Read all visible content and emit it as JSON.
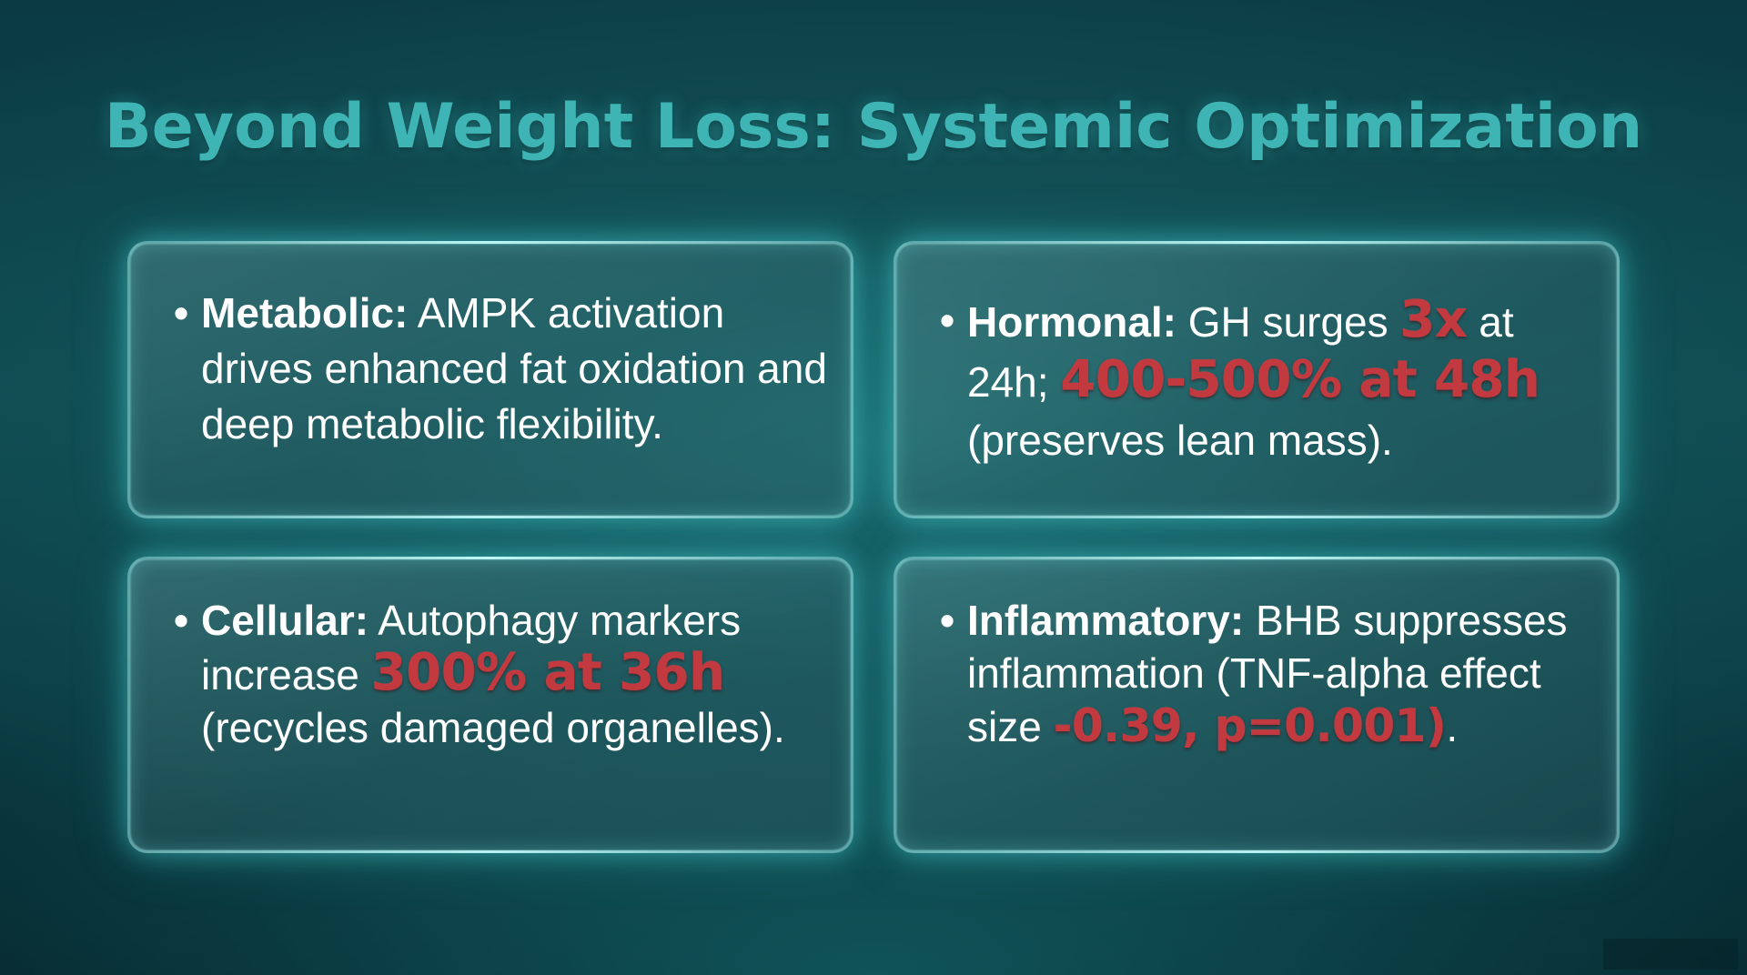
{
  "slide": {
    "title": "Beyond Weight Loss: Systemic Optimization"
  },
  "cards": {
    "metabolic": {
      "bullet": "•",
      "label": "Metabolic:",
      "text": " AMPK activation drives enhanced fat oxidation and deep metabolic flexibility."
    },
    "hormonal": {
      "bullet": "•",
      "label": "Hormonal:",
      "text_1": " GH surges ",
      "highlight_1": "3x",
      "text_2": " at 24h; ",
      "highlight_2": "400-500% at 48h",
      "text_3": " (preserves lean mass)."
    },
    "cellular": {
      "bullet": "•",
      "label": "Cellular:",
      "text_1": " Autophagy markers increase ",
      "highlight_1": "300% at 36h",
      "text_2": " (recycles damaged organelles)."
    },
    "inflammatory": {
      "bullet": "•",
      "label": "Inflammatory:",
      "text_1": " BHB suppresses inflammation (TNF-alpha effect size ",
      "highlight_1": "-0.39, p=0.001)",
      "text_2": "."
    }
  },
  "colors": {
    "title": "#3fb4b4",
    "highlight": "#c23a3f",
    "body_text": "#ffffff"
  }
}
